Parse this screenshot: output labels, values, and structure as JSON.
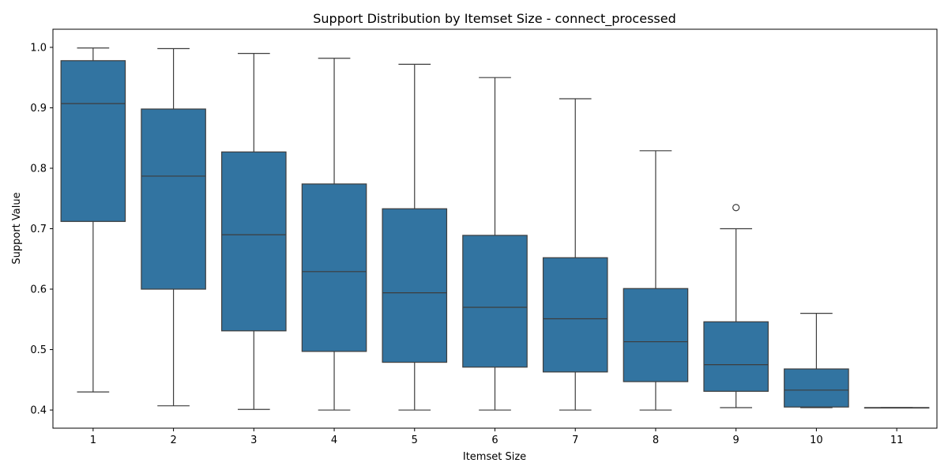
{
  "chart_data": {
    "type": "box",
    "title": "Support Distribution by Itemset Size - connect_processed",
    "xlabel": "Itemset Size",
    "ylabel": "Support Value",
    "ylim": [
      0.37,
      1.03
    ],
    "yticks": [
      0.4,
      0.5,
      0.6,
      0.7,
      0.8,
      0.9,
      1.0
    ],
    "ytick_labels": [
      "0.4",
      "0.5",
      "0.6",
      "0.7",
      "0.8",
      "0.9",
      "1.0"
    ],
    "categories": [
      "1",
      "2",
      "3",
      "4",
      "5",
      "6",
      "7",
      "8",
      "9",
      "10",
      "11"
    ],
    "box_color": "#3274a1",
    "line_color": "#3d3d3d",
    "grid": false,
    "boxes": [
      {
        "category": "1",
        "whisker_low": 0.43,
        "q1": 0.712,
        "median": 0.907,
        "q3": 0.978,
        "whisker_high": 0.999,
        "outliers": []
      },
      {
        "category": "2",
        "whisker_low": 0.407,
        "q1": 0.6,
        "median": 0.787,
        "q3": 0.898,
        "whisker_high": 0.998,
        "outliers": []
      },
      {
        "category": "3",
        "whisker_low": 0.401,
        "q1": 0.531,
        "median": 0.69,
        "q3": 0.827,
        "whisker_high": 0.99,
        "outliers": []
      },
      {
        "category": "4",
        "whisker_low": 0.4,
        "q1": 0.497,
        "median": 0.629,
        "q3": 0.774,
        "whisker_high": 0.982,
        "outliers": []
      },
      {
        "category": "5",
        "whisker_low": 0.4,
        "q1": 0.479,
        "median": 0.594,
        "q3": 0.733,
        "whisker_high": 0.972,
        "outliers": []
      },
      {
        "category": "6",
        "whisker_low": 0.4,
        "q1": 0.471,
        "median": 0.57,
        "q3": 0.689,
        "whisker_high": 0.95,
        "outliers": []
      },
      {
        "category": "7",
        "whisker_low": 0.4,
        "q1": 0.463,
        "median": 0.551,
        "q3": 0.652,
        "whisker_high": 0.915,
        "outliers": []
      },
      {
        "category": "8",
        "whisker_low": 0.4,
        "q1": 0.447,
        "median": 0.513,
        "q3": 0.601,
        "whisker_high": 0.829,
        "outliers": []
      },
      {
        "category": "9",
        "whisker_low": 0.404,
        "q1": 0.431,
        "median": 0.475,
        "q3": 0.546,
        "whisker_high": 0.7,
        "outliers": [
          0.735
        ]
      },
      {
        "category": "10",
        "whisker_low": 0.404,
        "q1": 0.405,
        "median": 0.433,
        "q3": 0.468,
        "whisker_high": 0.56,
        "outliers": []
      },
      {
        "category": "11",
        "whisker_low": 0.404,
        "q1": 0.404,
        "median": 0.404,
        "q3": 0.404,
        "whisker_high": 0.404,
        "outliers": []
      }
    ]
  }
}
